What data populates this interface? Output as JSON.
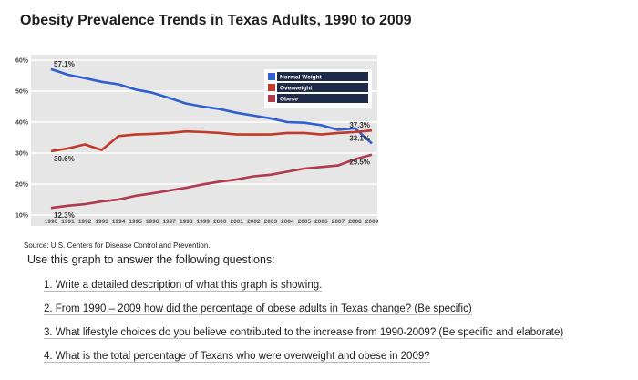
{
  "chart_data": {
    "type": "line",
    "title": "Obesity Prevalence Trends in Texas Adults, 1990 to 2009",
    "x": [
      1990,
      1991,
      1992,
      1993,
      1994,
      1995,
      1996,
      1997,
      1998,
      1999,
      2000,
      2001,
      2002,
      2003,
      2004,
      2005,
      2006,
      2007,
      2008,
      2009
    ],
    "ylim": [
      10,
      60
    ],
    "yticks": [
      "10%",
      "20%",
      "30%",
      "40%",
      "50%",
      "60%"
    ],
    "grid": true,
    "legend_placement": "top-right",
    "series": [
      {
        "color": "#2f5fd0",
        "values": [
          57.1,
          55.3,
          54.2,
          53.0,
          52.2,
          50.5,
          49.5,
          47.8,
          46.0,
          45.0,
          44.2,
          43.0,
          42.1,
          41.2,
          40.0,
          39.8,
          39.0,
          37.5,
          38.0,
          33.1
        ]
      },
      {
        "color": "#c0392b",
        "values": [
          30.6,
          31.5,
          32.8,
          31.0,
          35.5,
          36.0,
          36.2,
          36.5,
          37.0,
          36.8,
          36.5,
          36.0,
          36.0,
          36.0,
          36.5,
          36.5,
          36.0,
          36.5,
          36.8,
          37.3
        ]
      },
      {
        "color": "#b03a4e",
        "values": [
          12.3,
          13.0,
          13.5,
          14.4,
          15.0,
          16.2,
          17.0,
          17.9,
          18.8,
          19.9,
          20.8,
          21.5,
          22.5,
          23.0,
          24.0,
          25.0,
          25.5,
          26.0,
          28.0,
          29.5
        ]
      }
    ],
    "data_labels": [
      {
        "series": 0,
        "index": 0,
        "text": "57.1%"
      },
      {
        "series": 1,
        "index": 0,
        "text": "30.6%"
      },
      {
        "series": 2,
        "index": 0,
        "text": "12.3%"
      },
      {
        "series": 1,
        "index": 19,
        "text": "37.3%"
      },
      {
        "series": 0,
        "index": 19,
        "text": "33.1%"
      },
      {
        "series": 2,
        "index": 19,
        "text": "29.5%"
      }
    ],
    "legend": [
      {
        "label": "Normal Weight",
        "color": "#2f5fd0"
      },
      {
        "label": "Overweight",
        "color": "#c0392b"
      },
      {
        "label": "Obese",
        "color": "#b03a4e"
      }
    ]
  },
  "source": "Source: U.S. Centers for Disease Control and Prevention.",
  "intro": "Use this graph to answer the following questions:",
  "questions": [
    "1. Write a detailed description of what this graph is showing.",
    "2. From 1990 – 2009 how did the percentage of obese adults in Texas change? (Be specific)",
    "3. What lifestyle choices do you believe contributed to the increase from 1990-2009? (Be specific and elaborate)",
    "4. What is the total percentage of Texans who were overweight and obese in 2009?"
  ]
}
